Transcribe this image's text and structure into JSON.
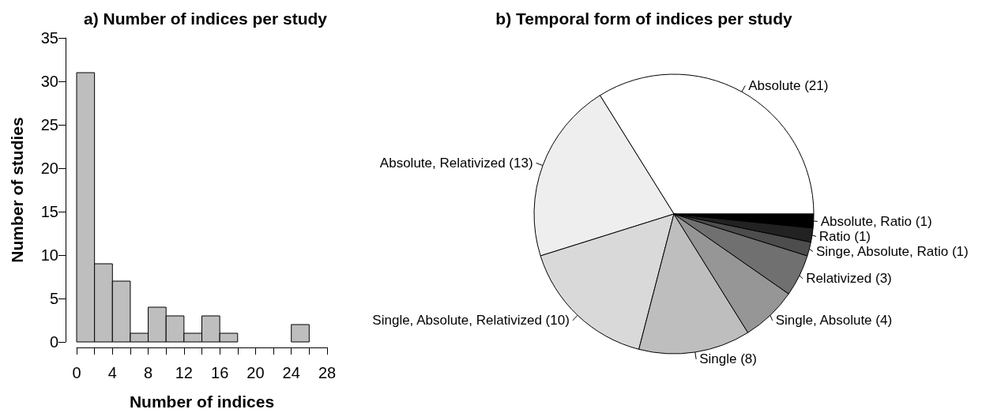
{
  "chart_data": [
    {
      "type": "histogram",
      "title": "a) Number of indices per study",
      "xlabel": "Number of indices",
      "ylabel": "Number of studies",
      "bins": [
        0,
        2,
        4,
        6,
        8,
        10,
        12,
        14,
        16,
        18,
        20,
        22,
        24,
        26
      ],
      "values": [
        31,
        9,
        7,
        1,
        4,
        3,
        1,
        3,
        1,
        0,
        0,
        0,
        2
      ],
      "color": "#bebebe",
      "xlim": [
        0,
        28
      ],
      "xticks": [
        0,
        {
          "value": 2,
          "label": null
        },
        4,
        {
          "value": 6,
          "label": null
        },
        8,
        {
          "value": 10,
          "label": null
        },
        12,
        {
          "value": 14,
          "label": null
        },
        16,
        {
          "value": 18,
          "label": null
        },
        20,
        {
          "value": 22,
          "label": null
        },
        24,
        {
          "value": 26,
          "label": null
        },
        28
      ],
      "ylim": [
        0,
        35
      ],
      "yticks": [
        0,
        5,
        10,
        15,
        20,
        25,
        30,
        35
      ]
    },
    {
      "type": "pie",
      "title": "b) Temporal form of indices per study",
      "categories": [
        "Absolute (21)",
        "Absolute, Relativized (13)",
        "Single, Absolute, Relativized (10)",
        "Single (8)",
        "Single, Absolute (4)",
        "Relativized (3)",
        "Singe, Absolute, Ratio (1)",
        "Ratio (1)",
        "Absolute, Ratio (1)"
      ],
      "values": [
        21,
        13,
        10,
        8,
        4,
        3,
        1,
        1,
        1
      ],
      "colors": [
        "#ffffff",
        "#eeeeee",
        "#d9d9d9",
        "#bebebe",
        "#969696",
        "#707070",
        "#4d4d4d",
        "#222222",
        "#000000"
      ]
    }
  ]
}
